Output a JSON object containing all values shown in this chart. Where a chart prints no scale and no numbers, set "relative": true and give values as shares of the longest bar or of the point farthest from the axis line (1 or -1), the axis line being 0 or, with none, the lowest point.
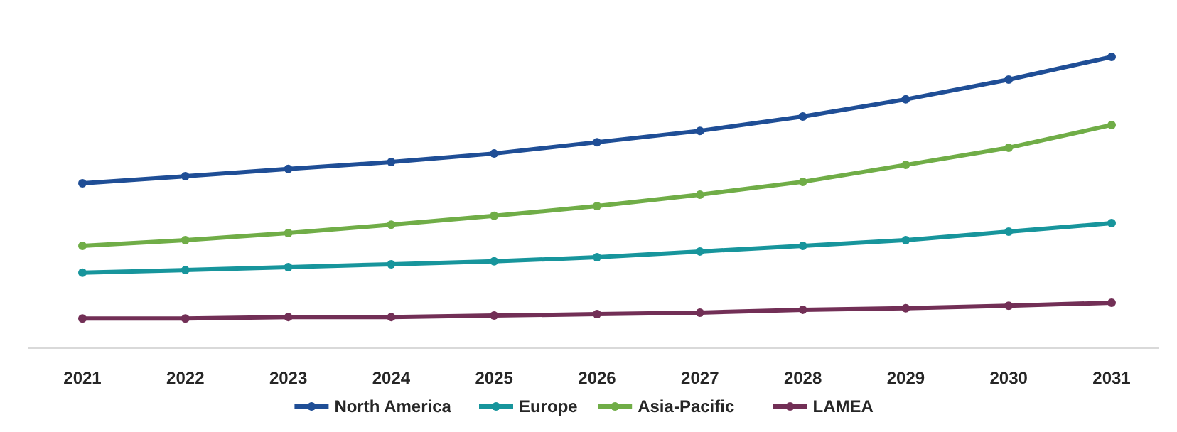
{
  "chart_data": {
    "type": "line",
    "relative": true,
    "categories": [
      "2021",
      "2022",
      "2023",
      "2024",
      "2025",
      "2026",
      "2027",
      "2028",
      "2029",
      "2030",
      "2031"
    ],
    "marker": "circle",
    "legend": "bottom",
    "series": [
      {
        "name": "North America",
        "color": "#1f4e96",
        "values": [
          0.566,
          0.59,
          0.615,
          0.639,
          0.668,
          0.707,
          0.746,
          0.795,
          0.854,
          0.922,
          1
        ]
      },
      {
        "name": "Europe",
        "color": "#17959c",
        "values": [
          0.259,
          0.268,
          0.278,
          0.288,
          0.298,
          0.312,
          0.332,
          0.351,
          0.371,
          0.4,
          0.429
        ]
      },
      {
        "name": "Asia-Pacific",
        "color": "#70ad47",
        "values": [
          0.351,
          0.371,
          0.395,
          0.424,
          0.454,
          0.488,
          0.527,
          0.571,
          0.629,
          0.688,
          0.766
        ]
      },
      {
        "name": "LAMEA",
        "color": "#722f56",
        "values": [
          0.102,
          0.102,
          0.107,
          0.107,
          0.112,
          0.117,
          0.122,
          0.132,
          0.137,
          0.146,
          0.156
        ]
      }
    ]
  }
}
